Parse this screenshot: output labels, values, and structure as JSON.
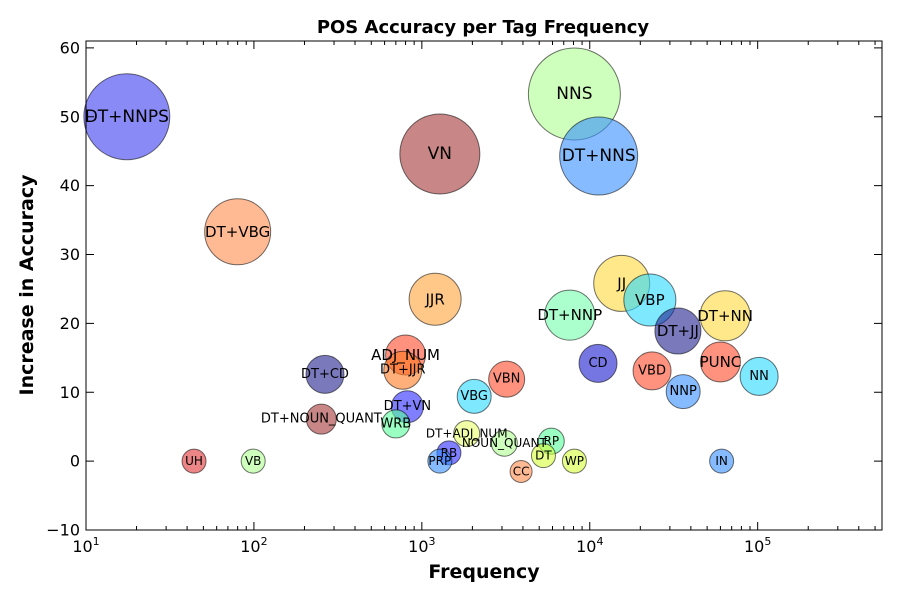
{
  "chart_data": {
    "type": "scatter",
    "title": "POS Accuracy per Tag Frequency",
    "xlabel": "Frequency",
    "ylabel": "Increase in Accuracy",
    "xscale": "log",
    "xlim": [
      10,
      550000
    ],
    "ylim": [
      -10,
      61
    ],
    "xticks": [
      10,
      100,
      1000,
      10000,
      100000
    ],
    "xtick_labels": [
      {
        "base": "10",
        "exp": "1"
      },
      {
        "base": "10",
        "exp": "2"
      },
      {
        "base": "10",
        "exp": "3"
      },
      {
        "base": "10",
        "exp": "4"
      },
      {
        "base": "10",
        "exp": "5"
      }
    ],
    "yticks": [
      -10,
      0,
      10,
      20,
      30,
      40,
      50,
      60
    ],
    "ytick_labels": [
      "−10",
      "0",
      "10",
      "20",
      "30",
      "40",
      "50",
      "60"
    ],
    "grid": false,
    "points": [
      {
        "label": "NNS",
        "x": 8100,
        "y": 53.3,
        "size": 46,
        "color": "#adff8f"
      },
      {
        "label": "DT+NNPS",
        "x": 17.5,
        "y": 50.0,
        "size": 43,
        "color": "#3c3cf0"
      },
      {
        "label": "DT+NNS",
        "x": 11300,
        "y": 44.3,
        "size": 39,
        "color": "#3590ff"
      },
      {
        "label": "VN",
        "x": 1280,
        "y": 44.6,
        "size": 40,
        "color": "#a43535"
      },
      {
        "label": "DT+VBG",
        "x": 80,
        "y": 33.3,
        "size": 33,
        "color": "#ff8c4c"
      },
      {
        "label": "JJ",
        "x": 15500,
        "y": 25.8,
        "size": 28,
        "color": "#ffd93a"
      },
      {
        "label": "VBP",
        "x": 22800,
        "y": 23.4,
        "size": 26,
        "color": "#27d8ff"
      },
      {
        "label": "JJR",
        "x": 1200,
        "y": 23.5,
        "size": 26,
        "color": "#ffa43a"
      },
      {
        "label": "DT+NNP",
        "x": 7600,
        "y": 21.2,
        "size": 25,
        "color": "#73ffaa"
      },
      {
        "label": "DT+NN",
        "x": 64000,
        "y": 21.1,
        "size": 25,
        "color": "#ffd93a"
      },
      {
        "label": "DT+JJ",
        "x": 33500,
        "y": 18.9,
        "size": 23,
        "color": "#1f1f8f"
      },
      {
        "label": "ADJ_NUM",
        "x": 800,
        "y": 15.4,
        "size": 20,
        "color": "#ff4a2a"
      },
      {
        "label": "DT+JJR",
        "x": 770,
        "y": 13.2,
        "size": 19,
        "color": "#ff7a1f"
      },
      {
        "label": "PUNC",
        "x": 60000,
        "y": 14.4,
        "size": 20,
        "color": "#ff4a2a"
      },
      {
        "label": "CD",
        "x": 11200,
        "y": 14.2,
        "size": 19,
        "color": "#1a1ad0"
      },
      {
        "label": "VBD",
        "x": 23500,
        "y": 13.1,
        "size": 19,
        "color": "#ff4a2a"
      },
      {
        "label": "DT+CD",
        "x": 265,
        "y": 12.6,
        "size": 19,
        "color": "#1f1f8f"
      },
      {
        "label": "NN",
        "x": 102000,
        "y": 12.3,
        "size": 19,
        "color": "#27d8ff"
      },
      {
        "label": "VBN",
        "x": 3200,
        "y": 11.9,
        "size": 18,
        "color": "#ff4a2a"
      },
      {
        "label": "NNP",
        "x": 36000,
        "y": 10.1,
        "size": 17,
        "color": "#3590ff"
      },
      {
        "label": "VBG",
        "x": 2050,
        "y": 9.4,
        "size": 17,
        "color": "#27d8ff"
      },
      {
        "label": "DT+VN",
        "x": 820,
        "y": 7.9,
        "size": 16,
        "color": "#2a2aff"
      },
      {
        "label": "DT+NOUN_QUANT",
        "x": 252,
        "y": 6.1,
        "size": 15,
        "color": "#a43535"
      },
      {
        "label": "WRB",
        "x": 700,
        "y": 5.4,
        "size": 14,
        "color": "#56ff9a"
      },
      {
        "label": "DT+ADJ_NUM",
        "x": 1850,
        "y": 4.0,
        "size": 13,
        "color": "#e7ff6a"
      },
      {
        "label": "RP",
        "x": 5900,
        "y": 2.9,
        "size": 13,
        "color": "#56ff9a"
      },
      {
        "label": "NOUN_QUANT",
        "x": 3100,
        "y": 2.6,
        "size": 13,
        "color": "#adff8f"
      },
      {
        "label": "RB",
        "x": 1450,
        "y": 1.2,
        "size": 12,
        "color": "#2a2aff"
      },
      {
        "label": "DT",
        "x": 5300,
        "y": 0.8,
        "size": 12,
        "color": "#d4ff3a"
      },
      {
        "label": "UH",
        "x": 44,
        "y": 0.0,
        "size": 12,
        "color": "#e03333"
      },
      {
        "label": "VB",
        "x": 99,
        "y": 0.0,
        "size": 12,
        "color": "#adff8f"
      },
      {
        "label": "PRP",
        "x": 1280,
        "y": 0.0,
        "size": 12,
        "color": "#3590ff"
      },
      {
        "label": "WP",
        "x": 8100,
        "y": 0.0,
        "size": 12,
        "color": "#d4ff3a"
      },
      {
        "label": "IN",
        "x": 61000,
        "y": 0.0,
        "size": 12,
        "color": "#3590ff"
      },
      {
        "label": "CC",
        "x": 3900,
        "y": -1.5,
        "size": 11,
        "color": "#ff8c4c"
      }
    ]
  }
}
